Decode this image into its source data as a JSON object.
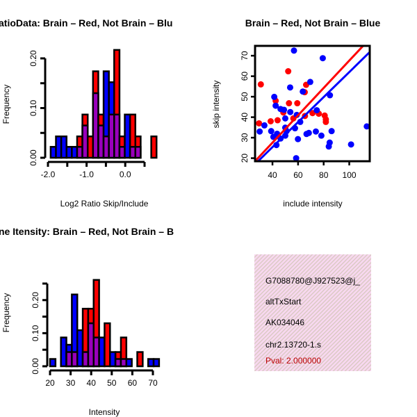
{
  "colors": {
    "red": "#ff0000",
    "blue": "#0000ff",
    "overlap": "#9900bb",
    "pval": "#bb0000",
    "panel_bg": "#f8d8f0"
  },
  "chart_data": [
    {
      "type": "bar",
      "title": "atioData: Brain – Red, Not Brain – Blu",
      "xlabel": "Log2 Ratio Skip/Include",
      "ylabel": "Frequency",
      "bin_start": -1.93,
      "bin_width": 0.137,
      "xlim": [
        -2.0,
        0.5
      ],
      "ylim": [
        0,
        0.2
      ],
      "xticks": [
        -2.0,
        -1.5,
        -1.0,
        -0.5,
        0.0,
        0.5
      ],
      "xtick_labels": [
        "-2.0",
        "",
        "-1.0",
        "",
        "0.0",
        ""
      ],
      "yticks": [
        0,
        0.05,
        0.1,
        0.15,
        0.2
      ],
      "ytick_labels": [
        "0.00",
        "",
        "0.10",
        "",
        "0.20"
      ],
      "series": [
        {
          "name": "Brain",
          "color": "red",
          "values": [
            0,
            0,
            0,
            0,
            0,
            0.043,
            0.087,
            0.043,
            0.174,
            0.087,
            0.043,
            0.087,
            0.217,
            0.043,
            0,
            0.087,
            0.043,
            0,
            0,
            0.043
          ]
        },
        {
          "name": "Not Brain",
          "color": "blue",
          "values": [
            0.022,
            0.043,
            0.043,
            0.022,
            0.022,
            0.022,
            0.065,
            0,
            0.13,
            0.065,
            0.174,
            0.152,
            0.087,
            0.022,
            0.087,
            0.022,
            0.022,
            0,
            0,
            0
          ]
        }
      ]
    },
    {
      "type": "scatter",
      "title": "Brain – Red, Not Brain – Blue",
      "xlabel": "include intensity",
      "ylabel": "skip intensity",
      "xlim": [
        26.4,
        116
      ],
      "ylim": [
        18.5,
        74.8
      ],
      "xticks": [
        40,
        60,
        80,
        100
      ],
      "yticks": [
        20,
        30,
        40,
        50,
        60,
        70
      ],
      "series": [
        {
          "name": "Brain",
          "color": "red",
          "fit": {
            "slope": 0.667,
            "intercept": 0.9
          },
          "points": [
            [
              30.9,
              56
            ],
            [
              29.5,
              37
            ],
            [
              38.6,
              38
            ],
            [
              44,
              38.5
            ],
            [
              42.5,
              48
            ],
            [
              52.3,
              62.4
            ],
            [
              52.9,
              46.8
            ],
            [
              59.4,
              46.8
            ],
            [
              66.3,
              55.8
            ],
            [
              65.2,
              52.2
            ],
            [
              65.4,
              40.6
            ],
            [
              48.5,
              42.3
            ],
            [
              71.3,
              42
            ],
            [
              76.2,
              41.7
            ],
            [
              80.8,
              40.8
            ],
            [
              81.7,
              38.9
            ],
            [
              81.7,
              37.7
            ],
            [
              56.3,
              39.4
            ]
          ]
        },
        {
          "name": "Not Brain",
          "color": "blue",
          "fit": {
            "slope": 0.61,
            "intercept": 1.0
          },
          "points": [
            [
              56.8,
              72.5
            ],
            [
              79.3,
              68.8
            ],
            [
              69.5,
              57.2
            ],
            [
              53.8,
              54.5
            ],
            [
              63.7,
              52.5
            ],
            [
              84.9,
              50.7
            ],
            [
              41.4,
              49.9
            ],
            [
              42.5,
              45.6
            ],
            [
              46.3,
              44
            ],
            [
              49,
              43.6
            ],
            [
              53.9,
              42.5
            ],
            [
              74.6,
              43.4
            ],
            [
              50,
              39.4
            ],
            [
              59,
              41.1
            ],
            [
              61.7,
              37.7
            ],
            [
              33.7,
              36
            ],
            [
              30,
              33
            ],
            [
              39,
              33.2
            ],
            [
              40.7,
              30.4
            ],
            [
              43.6,
              31.9
            ],
            [
              46.3,
              29.6
            ],
            [
              50,
              34.9
            ],
            [
              50,
              31
            ],
            [
              57.6,
              34.6
            ],
            [
              43.1,
              26.4
            ],
            [
              59.9,
              29.3
            ],
            [
              66.6,
              31.8
            ],
            [
              68.4,
              32.3
            ],
            [
              73.9,
              33
            ],
            [
              78.2,
              31
            ],
            [
              86.2,
              33.2
            ],
            [
              84.7,
              27.6
            ],
            [
              84,
              25.7
            ],
            [
              58.5,
              20
            ],
            [
              101.4,
              26.7
            ],
            [
              113.7,
              35.5
            ],
            [
              51,
              33.2
            ]
          ]
        }
      ]
    },
    {
      "type": "bar",
      "title": "ne Itensity: Brain – Red, Not Brain – B",
      "xlabel": "Intensity",
      "ylabel": "Frequency",
      "bin_start": 20,
      "bin_width": 2.65,
      "xlim": [
        20,
        70
      ],
      "ylim": [
        0,
        0.25
      ],
      "xticks": [
        20,
        30,
        40,
        50,
        60,
        70
      ],
      "xtick_labels": [
        "20",
        "30",
        "40",
        "50",
        "60",
        "70"
      ],
      "yticks": [
        0,
        0.05,
        0.1,
        0.15,
        0.2,
        0.25
      ],
      "ytick_labels": [
        "0.00",
        "",
        "0.10",
        "",
        "0.20",
        ""
      ],
      "series": [
        {
          "name": "Brain",
          "color": "red",
          "values": [
            0,
            0,
            0,
            0.043,
            0.043,
            0,
            0.174,
            0.174,
            0.261,
            0,
            0.13,
            0,
            0.043,
            0.087,
            0,
            0,
            0.043,
            0,
            0,
            0
          ]
        },
        {
          "name": "Not Brain",
          "color": "blue",
          "values": [
            0.022,
            0,
            0.087,
            0.065,
            0.217,
            0.109,
            0.043,
            0.13,
            0.087,
            0.087,
            0,
            0.043,
            0.022,
            0.022,
            0.022,
            0,
            0,
            0,
            0.022,
            0.022
          ]
        }
      ]
    }
  ],
  "info": {
    "lines": [
      "G7088780@J927523@j_",
      "altTxStart",
      "AK034046",
      "chr2.13720-1.s"
    ],
    "pval": "Pval: 2.000000"
  }
}
